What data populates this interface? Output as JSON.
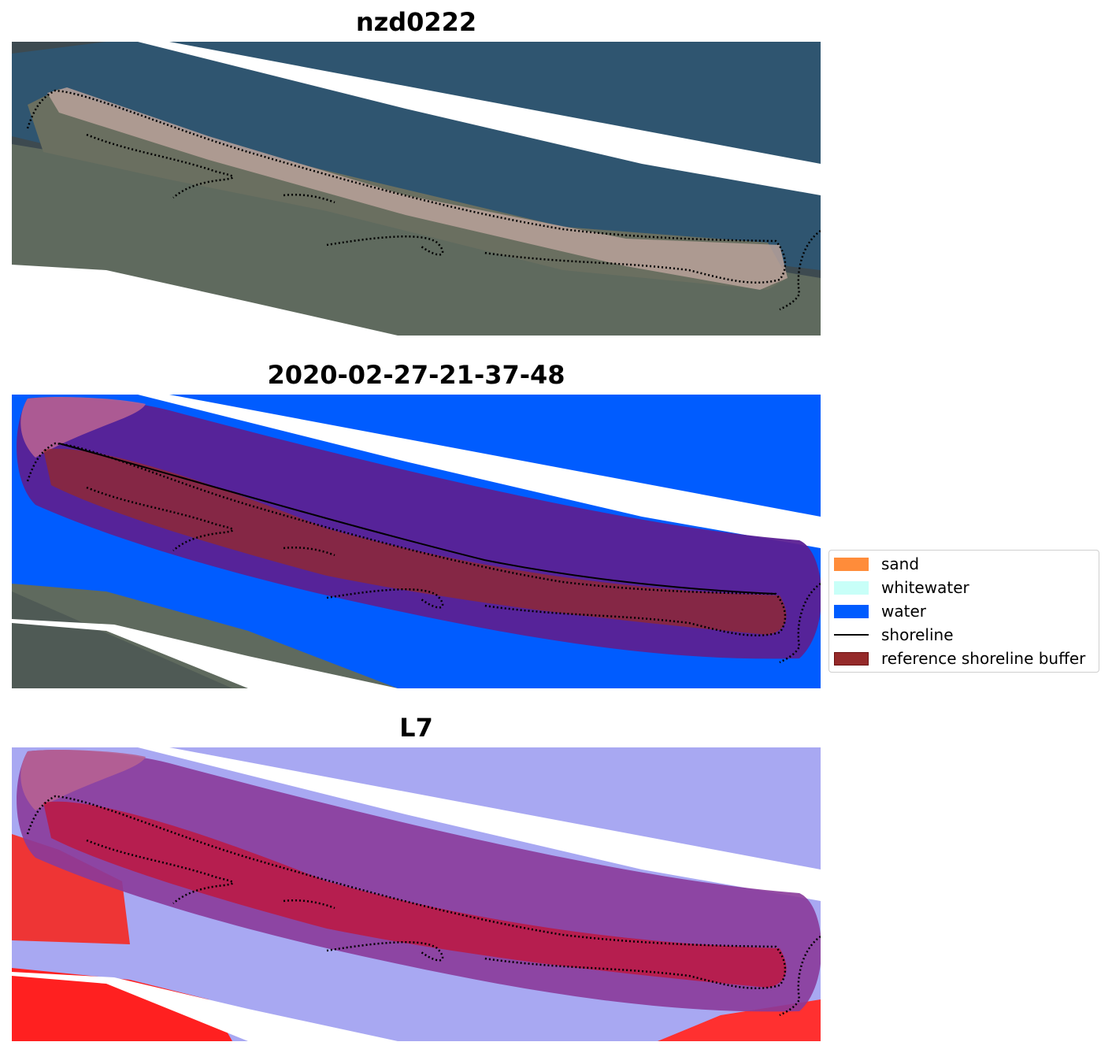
{
  "panels": [
    {
      "title": "nzd0222",
      "style": "rgb"
    },
    {
      "title": "2020-02-27-21-37-48",
      "style": "classified"
    },
    {
      "title": "L7",
      "style": "index"
    }
  ],
  "legend": {
    "items": [
      {
        "label": "sand",
        "color": "#ff8c3a",
        "kind": "patch"
      },
      {
        "label": "whitewater",
        "color": "#c8fff8",
        "kind": "patch"
      },
      {
        "label": "water",
        "color": "#005cff",
        "kind": "patch"
      },
      {
        "label": "shoreline",
        "color": "#000000",
        "kind": "line"
      },
      {
        "label": "reference shoreline buffer",
        "color": "#952a2a",
        "kind": "patch",
        "edge": "#6b1010"
      }
    ]
  },
  "colors": {
    "ocean": "#2f5570",
    "land": "#5f6a5e",
    "sand_spit": "#b9a29a",
    "water_class": "#005cff",
    "buffer_overlay": "#5b2093",
    "ref_buffer": "#952a2a",
    "index_positive": "#e01515",
    "index_negative": "#8f90f0",
    "gap": "#ffffff"
  }
}
